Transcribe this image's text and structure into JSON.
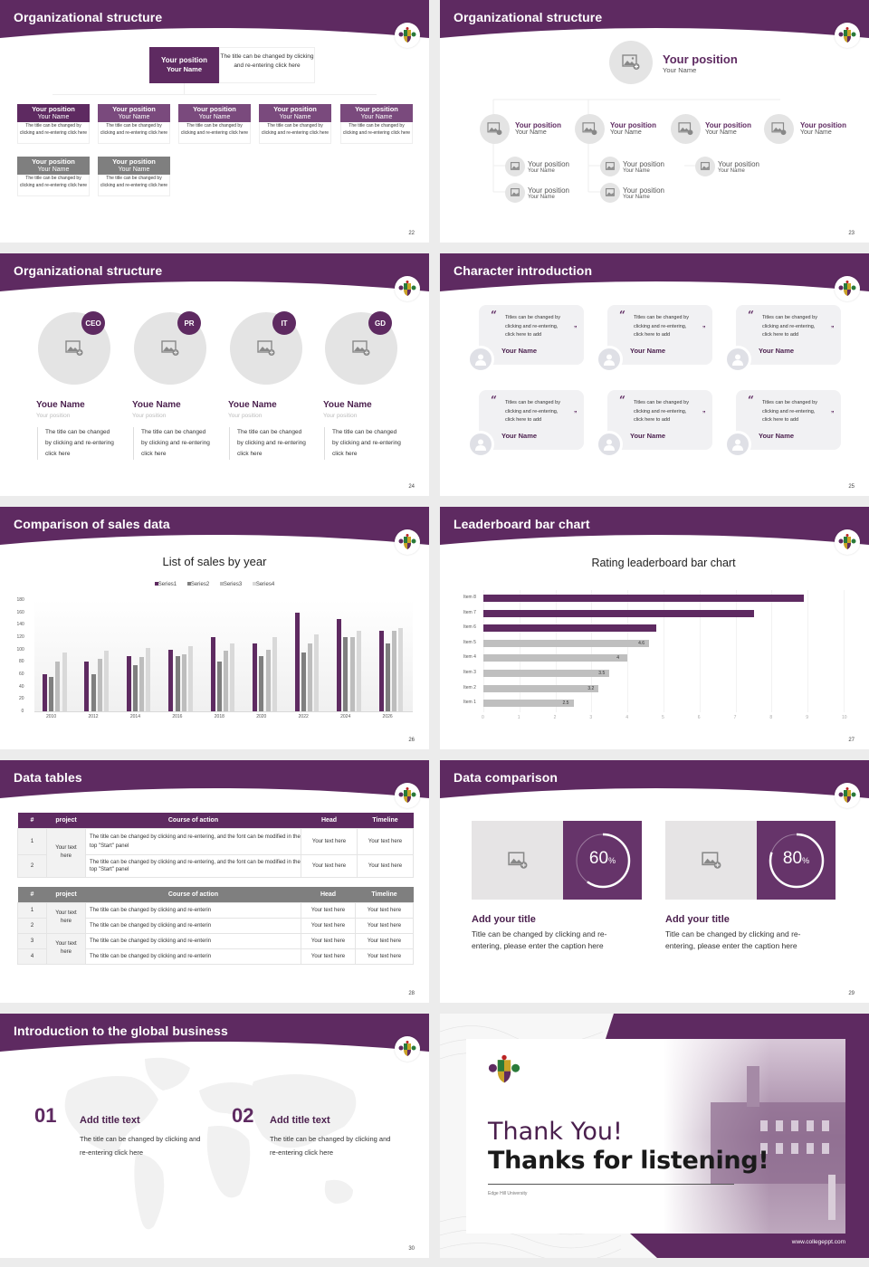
{
  "colors": {
    "brand_purple": "#5e2a61",
    "gray_header": "#7f7f7f",
    "light_gray": "#e4e4e4",
    "series2": "#7f7f7f",
    "series3": "#bdbdbd",
    "series4": "#d9d9d9"
  },
  "slides": {
    "s22": {
      "title": "Organizational structure",
      "page": "22",
      "top": {
        "position": "Your position",
        "name": "Your Name",
        "desc": "The title can be changed by clicking and re-entering click here"
      },
      "cards": [
        {
          "position": "Your position",
          "name": "Your Name",
          "desc": "The title can be changed by clicking and re-entering click here",
          "style": "purple"
        },
        {
          "position": "Your position",
          "name": "Your Name",
          "desc": "The title can be changed by clicking and re-entering click here",
          "style": "purple"
        },
        {
          "position": "Your position",
          "name": "Your Name",
          "desc": "The title can be changed by clicking and re-entering click here",
          "style": "purple"
        },
        {
          "position": "Your position",
          "name": "Your Name",
          "desc": "The title can be changed by clicking and re-entering click here",
          "style": "purple"
        },
        {
          "position": "Your position",
          "name": "Your Name",
          "desc": "The title can be changed by clicking and re-entering click here",
          "style": "purple"
        },
        {
          "position": "Your position",
          "name": "Your Name",
          "desc": "The title can be changed by clicking and re-entering click here",
          "style": "gray"
        },
        {
          "position": "Your position",
          "name": "Your Name",
          "desc": "The title can be changed by clicking and re-entering click here",
          "style": "gray"
        }
      ]
    },
    "s23": {
      "title": "Organizational structure",
      "page": "23",
      "top": {
        "position": "Your position",
        "name": "Your Name"
      },
      "level2": [
        {
          "position": "Your position",
          "name": "Your Name"
        },
        {
          "position": "Your position",
          "name": "Your Name"
        },
        {
          "position": "Your position",
          "name": "Your Name"
        },
        {
          "position": "Your position",
          "name": "Your Name"
        }
      ],
      "level3": [
        {
          "position": "Your position",
          "name": "Your Name"
        },
        {
          "position": "Your position",
          "name": "Your Name"
        },
        {
          "position": "Your position",
          "name": "Your Name"
        },
        {
          "position": "Your position",
          "name": "Your Name"
        },
        {
          "position": "Your position",
          "name": "Your Name"
        }
      ]
    },
    "s24": {
      "title": "Organizational structure",
      "page": "24",
      "people": [
        {
          "badge": "CEO",
          "name": "Youe Name",
          "position": "Your position",
          "desc": "The title can be changed by clicking and re-entering click here"
        },
        {
          "badge": "PR",
          "name": "Youe Name",
          "position": "Your position",
          "desc": "The title can be changed by clicking and re-entering click here"
        },
        {
          "badge": "IT",
          "name": "Youe Name",
          "position": "Your position",
          "desc": "The title can be changed by clicking and re-entering click here"
        },
        {
          "badge": "GD",
          "name": "Youe Name",
          "position": "Your position",
          "desc": "The title can be changed by clicking and re-entering click here"
        }
      ]
    },
    "s25": {
      "title": "Character introduction",
      "page": "25",
      "cards": [
        {
          "text": "Titles can be changed by clicking and re-entering, click here to add",
          "name": "Your Name"
        },
        {
          "text": "Titles can be changed by clicking and re-entering, click here to add",
          "name": "Your Name"
        },
        {
          "text": "Titles can be changed by clicking and re-entering, click here to add",
          "name": "Your Name"
        },
        {
          "text": "Titles can be changed by clicking and re-entering, click here to add",
          "name": "Your Name"
        },
        {
          "text": "Titles can be changed by clicking and re-entering, click here to add",
          "name": "Your Name"
        },
        {
          "text": "Titles can be changed by clicking and re-entering, click here to add",
          "name": "Your Name"
        }
      ]
    },
    "s26": {
      "title": "Comparison of sales data",
      "page": "26"
    },
    "s27": {
      "title": "Leaderboard bar chart",
      "page": "27"
    },
    "s28": {
      "title": "Data tables",
      "page": "28",
      "table1": {
        "headers": [
          "#",
          "project",
          "Course of action",
          "Head",
          "Timeline"
        ],
        "project": "Your text here",
        "rows": [
          {
            "num": "1",
            "action": "The title can be changed by clicking and re-entering, and the font can be modified in the top \"Start\" panel",
            "head": "Your text here",
            "timeline": "Your text here"
          },
          {
            "num": "2",
            "action": "The title can be changed by clicking and re-entering, and the font can be modified in the top \"Start\" panel",
            "head": "Your text here",
            "timeline": "Your text here"
          }
        ]
      },
      "table2": {
        "headers": [
          "#",
          "project",
          "Course of action",
          "Head",
          "Timeline"
        ],
        "projects": [
          "Your text here",
          "Your text here"
        ],
        "rows": [
          {
            "num": "1",
            "action": "The title can be changed by clicking and re-enterin",
            "head": "Your text here",
            "timeline": "Your text here"
          },
          {
            "num": "2",
            "action": "The title can be changed by clicking and re-enterin",
            "head": "Your text here",
            "timeline": "Your text here"
          },
          {
            "num": "3",
            "action": "The title can be changed by clicking and re-enterin",
            "head": "Your text here",
            "timeline": "Your text here"
          },
          {
            "num": "4",
            "action": "The title can be changed by clicking and re-enterin",
            "head": "Your text here",
            "timeline": "Your text here"
          }
        ]
      }
    },
    "s29": {
      "title": "Data comparison",
      "page": "29",
      "items": [
        {
          "value": "60",
          "unit": "%",
          "title": "Add your title",
          "desc": "Title can be changed by clicking and re-entering, please enter the caption here"
        },
        {
          "value": "80",
          "unit": "%",
          "title": "Add your title",
          "desc": "Title can be changed by clicking and re-entering, please enter the caption here"
        }
      ]
    },
    "s30": {
      "title": "Introduction to the global business",
      "page": "30",
      "items": [
        {
          "num": "01",
          "title": "Add title text",
          "desc": "The title can be changed by clicking and re-entering click here"
        },
        {
          "num": "02",
          "title": "Add title text",
          "desc": "The title can be changed by clicking and re-entering click here"
        }
      ]
    },
    "s31": {
      "thank_you": "Thank You!",
      "subtitle": "Thanks for listening!",
      "university": "Edge Hill University",
      "website": "www.collegeppt.com"
    }
  },
  "chart_data": [
    {
      "type": "bar",
      "title": "List of sales by year",
      "categories": [
        "2010",
        "2012",
        "2014",
        "2016",
        "2018",
        "2020",
        "2022",
        "2024",
        "2026"
      ],
      "series": [
        {
          "name": "Series1",
          "color": "#5e2a61",
          "values": [
            60,
            80,
            90,
            100,
            120,
            110,
            160,
            150,
            130
          ]
        },
        {
          "name": "Series2",
          "color": "#7f7f7f",
          "values": [
            55,
            60,
            75,
            90,
            80,
            90,
            95,
            120,
            110
          ]
        },
        {
          "name": "Series3",
          "color": "#bdbdbd",
          "values": [
            80,
            85,
            88,
            92,
            98,
            100,
            110,
            120,
            130
          ]
        },
        {
          "name": "Series4",
          "color": "#d9d9d9",
          "values": [
            95,
            98,
            102,
            105,
            110,
            120,
            125,
            130,
            135
          ]
        }
      ],
      "yticks": [
        "0",
        "20",
        "40",
        "60",
        "80",
        "100",
        "120",
        "140",
        "160",
        "180"
      ],
      "ylim": [
        0,
        180
      ],
      "xlabel": "",
      "ylabel": "",
      "legend_position": "top",
      "grid": false
    },
    {
      "type": "bar",
      "orientation": "horizontal",
      "title": "Rating leaderboard bar chart",
      "categories": [
        "Item 8",
        "Item 7",
        "Item 6",
        "Item 5",
        "Item 4",
        "Item 3",
        "Item 2",
        "Item 1"
      ],
      "values": [
        8.9,
        7.5,
        4.8,
        4.6,
        4,
        3.5,
        3.2,
        2.5
      ],
      "labels": [
        "",
        "",
        "",
        "4.6",
        "4",
        "3.5",
        "3.2",
        "2.5"
      ],
      "colors": [
        "#5e2a61",
        "#5e2a61",
        "#5e2a61",
        "#bfbfbf",
        "#bfbfbf",
        "#bfbfbf",
        "#bfbfbf",
        "#bfbfbf"
      ],
      "xticks": [
        "0",
        "1",
        "2",
        "3",
        "4",
        "5",
        "6",
        "7",
        "8",
        "9",
        "10"
      ],
      "xlim": [
        0,
        10
      ],
      "grid": true
    }
  ]
}
